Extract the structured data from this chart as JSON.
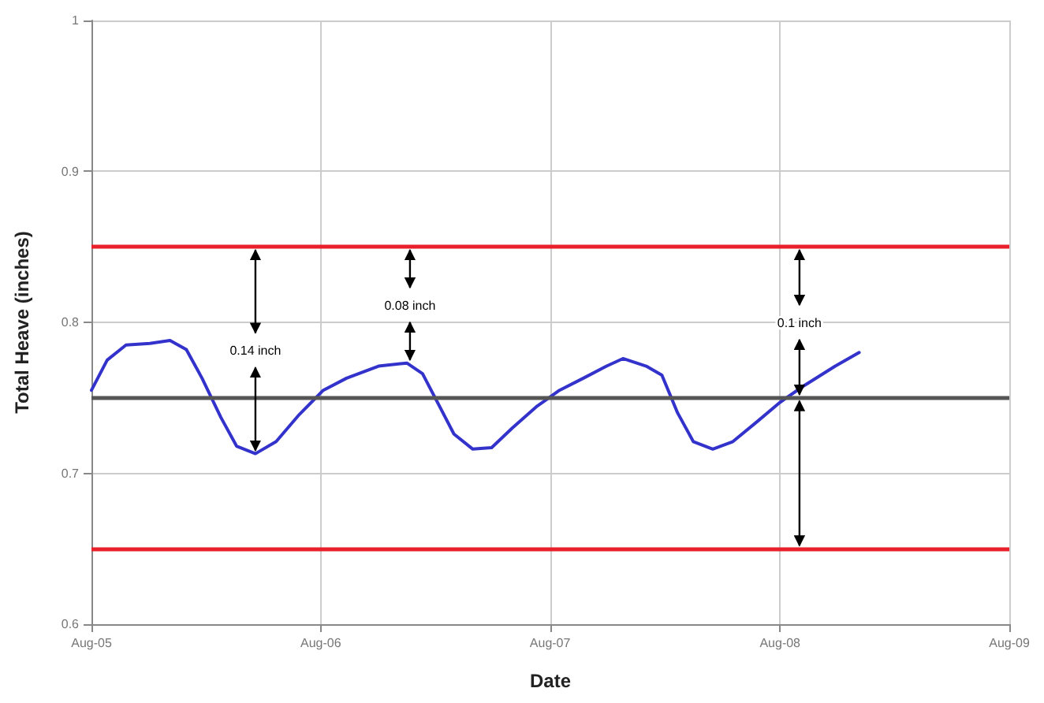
{
  "chart_data": {
    "type": "line",
    "xlabel": "Date",
    "ylabel": "Total Heave (inches)",
    "x": [
      "2005-08-01",
      "2005-08-26",
      "2005-09-25",
      "2005-11-02",
      "2005-12-04",
      "2005-12-30",
      "2006-01-24",
      "2006-02-23",
      "2006-03-20",
      "2006-04-19",
      "2006-05-22",
      "2006-06-28",
      "2006-08-05",
      "2006-09-11",
      "2006-11-01",
      "2006-12-16",
      "2007-01-10",
      "2007-02-04",
      "2007-03-01",
      "2007-03-31",
      "2007-04-30",
      "2007-06-02",
      "2007-07-10",
      "2007-08-16",
      "2007-09-23",
      "2007-10-30",
      "2007-11-25",
      "2008-01-01",
      "2008-01-26",
      "2008-02-20",
      "2008-03-16",
      "2008-04-16",
      "2008-05-18",
      "2008-06-25",
      "2008-08-01",
      "2008-09-08",
      "2008-10-28",
      "2008-12-05"
    ],
    "series": [
      {
        "color": "#3333cc",
        "values": [
          0.755,
          0.775,
          0.785,
          0.786,
          0.788,
          0.782,
          0.763,
          0.737,
          0.718,
          0.713,
          0.721,
          0.739,
          0.755,
          0.763,
          0.771,
          0.773,
          0.766,
          0.746,
          0.726,
          0.716,
          0.717,
          0.73,
          0.744,
          0.755,
          0.763,
          0.771,
          0.776,
          0.771,
          0.765,
          0.74,
          0.721,
          0.716,
          0.721,
          0.734,
          0.747,
          0.758,
          0.771,
          0.78
        ]
      }
    ],
    "xlim": [
      "2005-08-01",
      "2009-08-01"
    ],
    "xticks": [
      {
        "value": "2005-08-01",
        "label": "Aug-05"
      },
      {
        "value": "2006-08-01",
        "label": "Aug-06"
      },
      {
        "value": "2007-08-01",
        "label": "Aug-07"
      },
      {
        "value": "2008-08-01",
        "label": "Aug-08"
      },
      {
        "value": "2009-08-01",
        "label": "Aug-09"
      }
    ],
    "ylim": [
      0.6,
      1
    ],
    "yticks": [
      0.6,
      0.7,
      0.8,
      0.9,
      1
    ],
    "ref_lines": [
      {
        "axis": "y",
        "value": 0.85,
        "color": "#e8202a"
      },
      {
        "axis": "y",
        "value": 0.75,
        "color": "#555555"
      },
      {
        "axis": "y",
        "value": 0.65,
        "color": "#e8202a"
      }
    ],
    "annotations": [
      {
        "text": "0.14 inch",
        "x": "2006-04-19",
        "y": 0.713
      },
      {
        "text": "0.08 inch",
        "x": "2006-12-21",
        "y": 0.773
      },
      {
        "text": "0.1 inch",
        "x": "2008-09-01",
        "y": 0.75
      }
    ],
    "grid": true,
    "marker": "none",
    "line_style": "solid"
  }
}
